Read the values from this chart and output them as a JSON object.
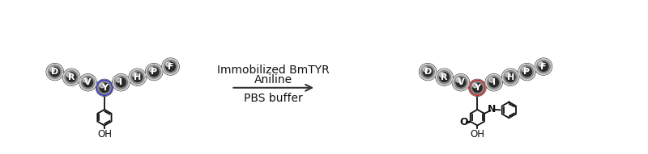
{
  "bg_color": "#ffffff",
  "arrow_text_line1": "Immobilized BmTYR",
  "arrow_text_line2": "Aniline",
  "arrow_text_line3": "PBS buffer",
  "peptide_labels": [
    "D",
    "R",
    "V",
    "Y",
    "I",
    "H",
    "P",
    "F"
  ],
  "left_y_color": "#3333cc",
  "right_y_color": "#cc2222",
  "font_size_ball": 8,
  "font_size_arrow_text": 10,
  "figsize": [
    8.0,
    1.91
  ],
  "dpi": 100
}
